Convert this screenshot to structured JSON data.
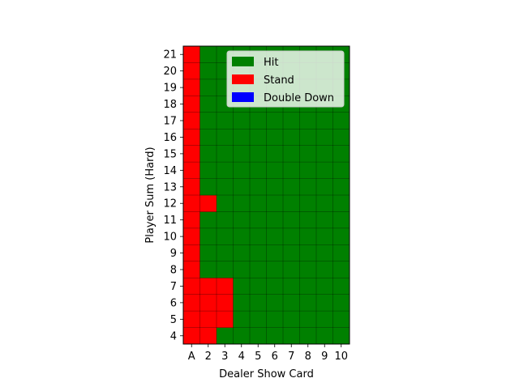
{
  "chart_data": {
    "type": "heatmap",
    "title": "",
    "xlabel": "Dealer Show Card",
    "ylabel": "Player Sum (Hard)",
    "x_categories": [
      "A",
      "2",
      "3",
      "4",
      "5",
      "6",
      "7",
      "8",
      "9",
      "10"
    ],
    "y_categories": [
      "4",
      "5",
      "6",
      "7",
      "8",
      "9",
      "10",
      "11",
      "12",
      "13",
      "14",
      "15",
      "16",
      "17",
      "18",
      "19",
      "20",
      "21"
    ],
    "actions": [
      "Hit",
      "Stand",
      "Double Down"
    ],
    "colors": {
      "Hit": "#008000",
      "Stand": "#ff0000",
      "Double Down": "#0000ff"
    },
    "grid": true,
    "legend_position": "upper-right",
    "rows_by_player_sum": {
      "21": [
        "Stand",
        "Hit",
        "Hit",
        "Hit",
        "Hit",
        "Hit",
        "Hit",
        "Hit",
        "Hit",
        "Hit"
      ],
      "20": [
        "Stand",
        "Hit",
        "Hit",
        "Hit",
        "Hit",
        "Hit",
        "Hit",
        "Hit",
        "Hit",
        "Hit"
      ],
      "19": [
        "Stand",
        "Hit",
        "Hit",
        "Hit",
        "Hit",
        "Hit",
        "Hit",
        "Hit",
        "Hit",
        "Hit"
      ],
      "18": [
        "Stand",
        "Hit",
        "Hit",
        "Hit",
        "Hit",
        "Hit",
        "Hit",
        "Hit",
        "Hit",
        "Hit"
      ],
      "17": [
        "Stand",
        "Hit",
        "Hit",
        "Hit",
        "Hit",
        "Hit",
        "Hit",
        "Hit",
        "Hit",
        "Hit"
      ],
      "16": [
        "Stand",
        "Hit",
        "Hit",
        "Hit",
        "Hit",
        "Hit",
        "Hit",
        "Hit",
        "Hit",
        "Hit"
      ],
      "15": [
        "Stand",
        "Hit",
        "Hit",
        "Hit",
        "Hit",
        "Hit",
        "Hit",
        "Hit",
        "Hit",
        "Hit"
      ],
      "14": [
        "Stand",
        "Hit",
        "Hit",
        "Hit",
        "Hit",
        "Hit",
        "Hit",
        "Hit",
        "Hit",
        "Hit"
      ],
      "13": [
        "Stand",
        "Hit",
        "Hit",
        "Hit",
        "Hit",
        "Hit",
        "Hit",
        "Hit",
        "Hit",
        "Hit"
      ],
      "12": [
        "Stand",
        "Stand",
        "Hit",
        "Hit",
        "Hit",
        "Hit",
        "Hit",
        "Hit",
        "Hit",
        "Hit"
      ],
      "11": [
        "Stand",
        "Hit",
        "Hit",
        "Hit",
        "Hit",
        "Hit",
        "Hit",
        "Hit",
        "Hit",
        "Hit"
      ],
      "10": [
        "Stand",
        "Hit",
        "Hit",
        "Hit",
        "Hit",
        "Hit",
        "Hit",
        "Hit",
        "Hit",
        "Hit"
      ],
      "9": [
        "Stand",
        "Hit",
        "Hit",
        "Hit",
        "Hit",
        "Hit",
        "Hit",
        "Hit",
        "Hit",
        "Hit"
      ],
      "8": [
        "Stand",
        "Hit",
        "Hit",
        "Hit",
        "Hit",
        "Hit",
        "Hit",
        "Hit",
        "Hit",
        "Hit"
      ],
      "7": [
        "Stand",
        "Stand",
        "Stand",
        "Hit",
        "Hit",
        "Hit",
        "Hit",
        "Hit",
        "Hit",
        "Hit"
      ],
      "6": [
        "Stand",
        "Stand",
        "Stand",
        "Hit",
        "Hit",
        "Hit",
        "Hit",
        "Hit",
        "Hit",
        "Hit"
      ],
      "5": [
        "Stand",
        "Stand",
        "Stand",
        "Hit",
        "Hit",
        "Hit",
        "Hit",
        "Hit",
        "Hit",
        "Hit"
      ],
      "4": [
        "Stand",
        "Stand",
        "Hit",
        "Hit",
        "Hit",
        "Hit",
        "Hit",
        "Hit",
        "Hit",
        "Hit"
      ]
    }
  }
}
